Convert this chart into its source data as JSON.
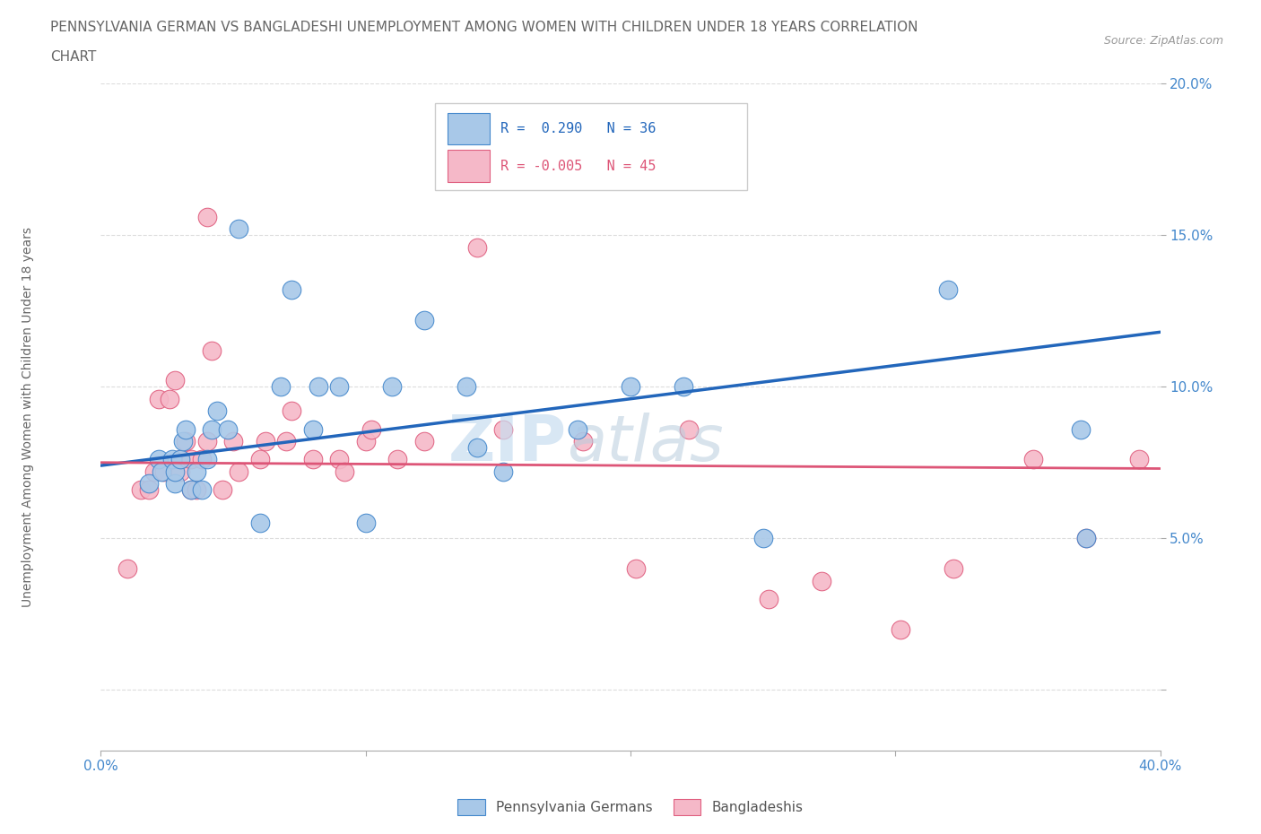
{
  "title_line1": "PENNSYLVANIA GERMAN VS BANGLADESHI UNEMPLOYMENT AMONG WOMEN WITH CHILDREN UNDER 18 YEARS CORRELATION",
  "title_line2": "CHART",
  "source": "Source: ZipAtlas.com",
  "ylabel": "Unemployment Among Women with Children Under 18 years",
  "xlim": [
    0.0,
    0.4
  ],
  "ylim": [
    -0.02,
    0.2
  ],
  "yticks": [
    0.0,
    0.05,
    0.1,
    0.15,
    0.2
  ],
  "ytick_labels": [
    "",
    "5.0%",
    "10.0%",
    "15.0%",
    "20.0%"
  ],
  "xticks": [
    0.0,
    0.1,
    0.2,
    0.3,
    0.4
  ],
  "xtick_labels": [
    "0.0%",
    "",
    "",
    "",
    "40.0%"
  ],
  "legend_pa_r": "R =  0.290",
  "legend_pa_n": "N = 36",
  "legend_bd_r": "R = -0.005",
  "legend_bd_n": "N = 45",
  "pa_color": "#a8c8e8",
  "bd_color": "#f5b8c8",
  "pa_edge_color": "#4488cc",
  "bd_edge_color": "#e06080",
  "pa_line_color": "#2266bb",
  "bd_line_color": "#dd5577",
  "tick_color": "#4488cc",
  "grid_color": "#dddddd",
  "title_color": "#666666",
  "ylabel_color": "#666666",
  "source_color": "#999999",
  "watermark_zip_color": "#c8ddf0",
  "watermark_atlas_color": "#b8ccdd",
  "pa_points_x": [
    0.018,
    0.022,
    0.023,
    0.027,
    0.028,
    0.028,
    0.03,
    0.031,
    0.032,
    0.034,
    0.036,
    0.038,
    0.04,
    0.042,
    0.044,
    0.048,
    0.052,
    0.06,
    0.068,
    0.072,
    0.08,
    0.082,
    0.09,
    0.1,
    0.11,
    0.122,
    0.138,
    0.142,
    0.152,
    0.18,
    0.2,
    0.22,
    0.25,
    0.32,
    0.37,
    0.372
  ],
  "pa_points_y": [
    0.068,
    0.076,
    0.072,
    0.076,
    0.068,
    0.072,
    0.076,
    0.082,
    0.086,
    0.066,
    0.072,
    0.066,
    0.076,
    0.086,
    0.092,
    0.086,
    0.152,
    0.055,
    0.1,
    0.132,
    0.086,
    0.1,
    0.1,
    0.055,
    0.1,
    0.122,
    0.1,
    0.08,
    0.072,
    0.086,
    0.1,
    0.1,
    0.05,
    0.132,
    0.086,
    0.05
  ],
  "bd_points_x": [
    0.01,
    0.015,
    0.018,
    0.02,
    0.022,
    0.024,
    0.026,
    0.028,
    0.028,
    0.03,
    0.03,
    0.032,
    0.034,
    0.034,
    0.036,
    0.038,
    0.04,
    0.04,
    0.042,
    0.046,
    0.05,
    0.052,
    0.06,
    0.062,
    0.07,
    0.072,
    0.08,
    0.09,
    0.092,
    0.1,
    0.102,
    0.112,
    0.122,
    0.142,
    0.152,
    0.182,
    0.202,
    0.222,
    0.252,
    0.272,
    0.302,
    0.322,
    0.352,
    0.372,
    0.392
  ],
  "bd_points_y": [
    0.04,
    0.066,
    0.066,
    0.072,
    0.096,
    0.072,
    0.096,
    0.072,
    0.102,
    0.072,
    0.076,
    0.082,
    0.066,
    0.076,
    0.066,
    0.076,
    0.082,
    0.156,
    0.112,
    0.066,
    0.082,
    0.072,
    0.076,
    0.082,
    0.082,
    0.092,
    0.076,
    0.076,
    0.072,
    0.082,
    0.086,
    0.076,
    0.082,
    0.146,
    0.086,
    0.082,
    0.04,
    0.086,
    0.03,
    0.036,
    0.02,
    0.04,
    0.076,
    0.05,
    0.076
  ],
  "pa_trend_x": [
    0.0,
    0.4
  ],
  "pa_trend_y": [
    0.074,
    0.118
  ],
  "bd_trend_x": [
    0.0,
    0.4
  ],
  "bd_trend_y": [
    0.075,
    0.073
  ]
}
